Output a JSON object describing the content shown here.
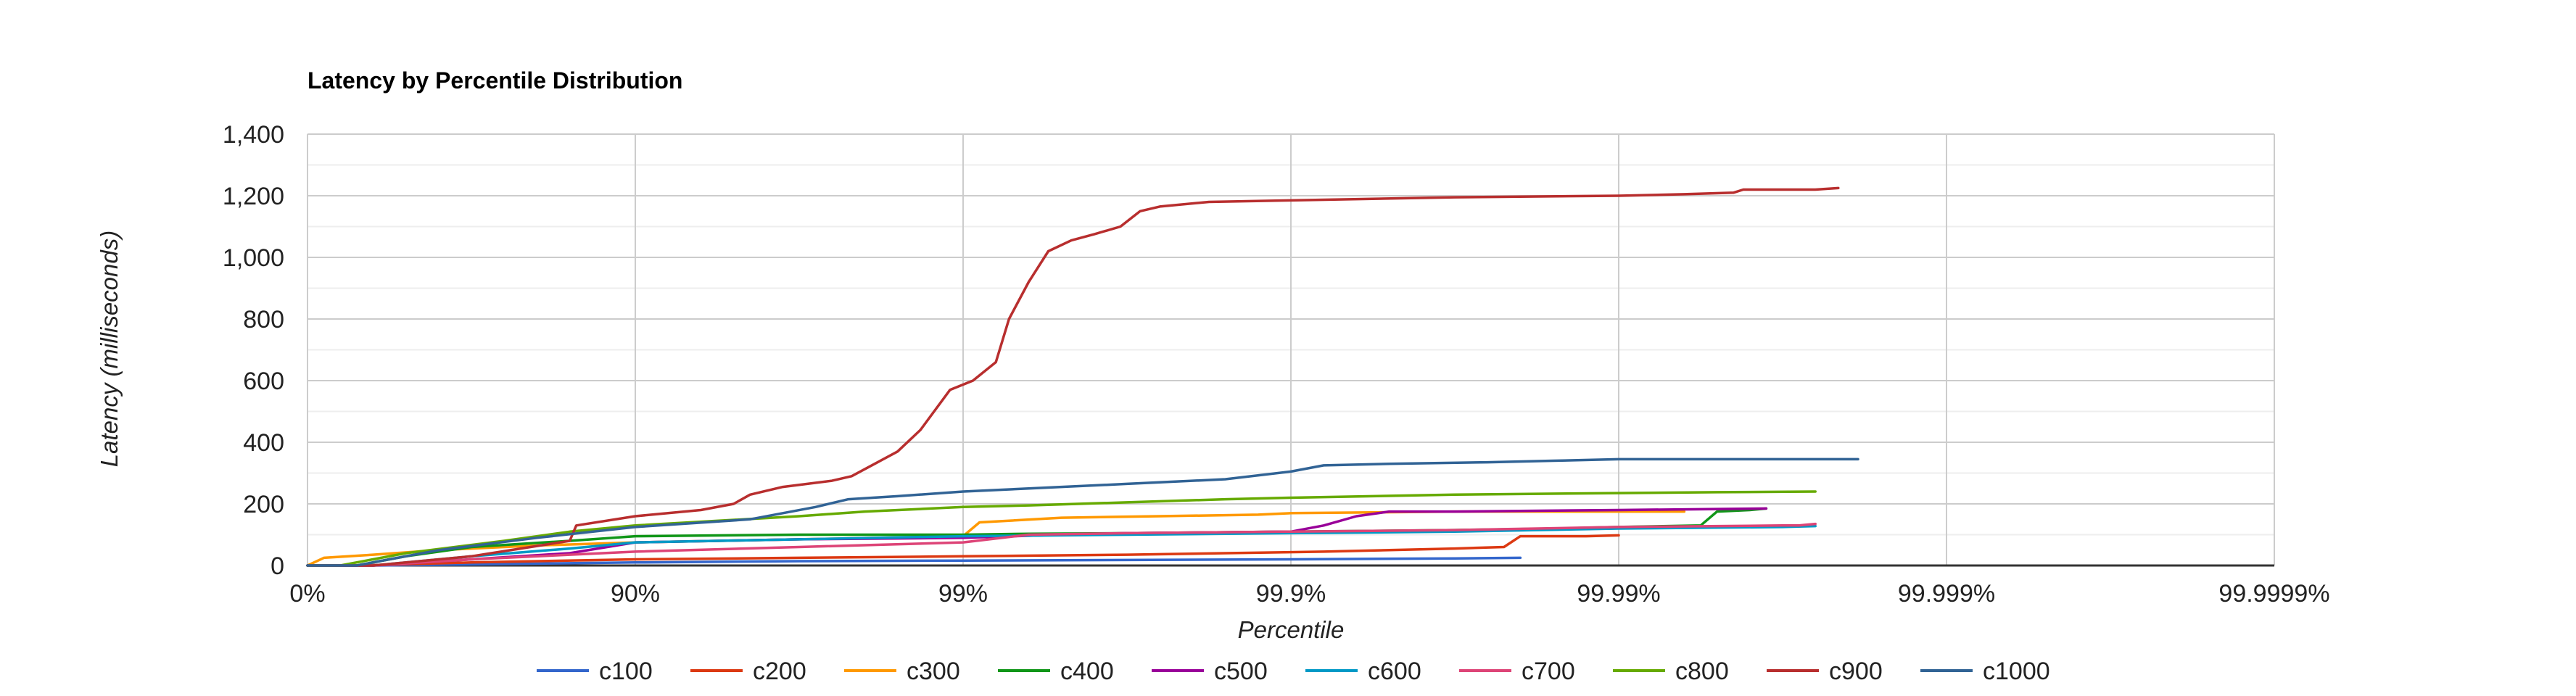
{
  "chart_data": {
    "type": "line",
    "title": "Latency by Percentile Distribution",
    "xlabel": "Percentile",
    "ylabel": "Latency (milliseconds)",
    "x_scale": "nines",
    "x_ticks": [
      "0%",
      "90%",
      "99%",
      "99.9%",
      "99.99%",
      "99.999%",
      "99.9999%"
    ],
    "xlim": [
      0,
      6
    ],
    "ylim": [
      0,
      1400
    ],
    "y_ticks": [
      "0",
      "200",
      "400",
      "600",
      "800",
      "1,000",
      "1,200",
      "1,400"
    ],
    "y_tick_values": [
      0,
      200,
      400,
      600,
      800,
      1000,
      1200,
      1400
    ],
    "grid": true,
    "legend_position": "bottom",
    "series": [
      {
        "name": "c100",
        "color": "#3366cc",
        "points": [
          [
            0,
            0
          ],
          [
            0.2,
            0
          ],
          [
            0.6,
            5
          ],
          [
            1.0,
            10
          ],
          [
            1.5,
            14
          ],
          [
            2.0,
            16
          ],
          [
            2.5,
            18
          ],
          [
            3.0,
            20
          ],
          [
            3.5,
            23
          ],
          [
            3.7,
            25
          ]
        ]
      },
      {
        "name": "c200",
        "color": "#dc3912",
        "points": [
          [
            0,
            0
          ],
          [
            0.15,
            0
          ],
          [
            0.5,
            10
          ],
          [
            1.0,
            20
          ],
          [
            1.5,
            25
          ],
          [
            2.0,
            30
          ],
          [
            2.5,
            35
          ],
          [
            2.8,
            40
          ],
          [
            3.1,
            45
          ],
          [
            3.3,
            50
          ],
          [
            3.5,
            55
          ],
          [
            3.65,
            60
          ],
          [
            3.7,
            95
          ],
          [
            3.9,
            95
          ],
          [
            4.0,
            98
          ]
        ]
      },
      {
        "name": "c300",
        "color": "#ff9900",
        "points": [
          [
            0,
            0
          ],
          [
            0.05,
            25
          ],
          [
            0.2,
            35
          ],
          [
            0.4,
            50
          ],
          [
            0.7,
            65
          ],
          [
            1.0,
            75
          ],
          [
            1.5,
            85
          ],
          [
            2.0,
            95
          ],
          [
            2.05,
            140
          ],
          [
            2.3,
            155
          ],
          [
            2.6,
            160
          ],
          [
            2.9,
            165
          ],
          [
            3.0,
            170
          ],
          [
            3.5,
            175
          ],
          [
            4.0,
            175
          ],
          [
            4.2,
            175
          ]
        ]
      },
      {
        "name": "c400",
        "color": "#109618",
        "points": [
          [
            0,
            0
          ],
          [
            0.15,
            0
          ],
          [
            0.3,
            30
          ],
          [
            0.5,
            60
          ],
          [
            0.8,
            80
          ],
          [
            1.0,
            95
          ],
          [
            1.5,
            100
          ],
          [
            2.0,
            100
          ],
          [
            2.2,
            103
          ],
          [
            2.5,
            105
          ],
          [
            3.0,
            110
          ],
          [
            3.5,
            115
          ],
          [
            3.8,
            120
          ],
          [
            4.0,
            125
          ],
          [
            4.25,
            130
          ],
          [
            4.3,
            175
          ],
          [
            4.4,
            180
          ],
          [
            4.45,
            185
          ]
        ]
      },
      {
        "name": "c500",
        "color": "#990099",
        "points": [
          [
            0,
            0
          ],
          [
            0.2,
            0
          ],
          [
            0.5,
            20
          ],
          [
            0.8,
            40
          ],
          [
            1.0,
            75
          ],
          [
            1.5,
            85
          ],
          [
            2.0,
            90
          ],
          [
            2.3,
            100
          ],
          [
            2.5,
            105
          ],
          [
            3.0,
            110
          ],
          [
            3.1,
            130
          ],
          [
            3.2,
            160
          ],
          [
            3.3,
            175
          ],
          [
            3.5,
            175
          ],
          [
            4.0,
            180
          ],
          [
            4.45,
            185
          ]
        ]
      },
      {
        "name": "c600",
        "color": "#0099c6",
        "points": [
          [
            0,
            0
          ],
          [
            0.2,
            0
          ],
          [
            0.5,
            30
          ],
          [
            0.8,
            55
          ],
          [
            1.0,
            75
          ],
          [
            1.5,
            85
          ],
          [
            2.0,
            95
          ],
          [
            2.5,
            100
          ],
          [
            3.0,
            105
          ],
          [
            3.5,
            110
          ],
          [
            4.0,
            120
          ],
          [
            4.5,
            125
          ],
          [
            4.6,
            128
          ]
        ]
      },
      {
        "name": "c700",
        "color": "#dd4477",
        "points": [
          [
            0,
            0
          ],
          [
            0.2,
            0
          ],
          [
            0.5,
            20
          ],
          [
            1.0,
            45
          ],
          [
            1.5,
            60
          ],
          [
            2.0,
            75
          ],
          [
            2.2,
            100
          ],
          [
            2.5,
            105
          ],
          [
            3.0,
            110
          ],
          [
            3.5,
            115
          ],
          [
            4.0,
            125
          ],
          [
            4.5,
            130
          ],
          [
            4.55,
            130
          ],
          [
            4.6,
            135
          ]
        ]
      },
      {
        "name": "c800",
        "color": "#66aa00",
        "points": [
          [
            0,
            0
          ],
          [
            0.1,
            0
          ],
          [
            0.3,
            40
          ],
          [
            0.6,
            80
          ],
          [
            0.8,
            110
          ],
          [
            1.0,
            130
          ],
          [
            1.5,
            160
          ],
          [
            1.7,
            175
          ],
          [
            2.0,
            190
          ],
          [
            2.2,
            195
          ],
          [
            2.5,
            205
          ],
          [
            2.8,
            215
          ],
          [
            3.0,
            220
          ],
          [
            3.5,
            230
          ],
          [
            4.0,
            235
          ],
          [
            4.3,
            238
          ],
          [
            4.6,
            240
          ]
        ]
      },
      {
        "name": "c900",
        "color": "#b82e2e",
        "points": [
          [
            0,
            0
          ],
          [
            0.2,
            0
          ],
          [
            0.5,
            30
          ],
          [
            0.8,
            80
          ],
          [
            0.82,
            130
          ],
          [
            1.0,
            160
          ],
          [
            1.2,
            180
          ],
          [
            1.3,
            200
          ],
          [
            1.35,
            230
          ],
          [
            1.45,
            255
          ],
          [
            1.6,
            275
          ],
          [
            1.66,
            290
          ],
          [
            1.73,
            330
          ],
          [
            1.8,
            370
          ],
          [
            1.87,
            440
          ],
          [
            1.96,
            570
          ],
          [
            2.03,
            600
          ],
          [
            2.1,
            660
          ],
          [
            2.14,
            800
          ],
          [
            2.2,
            920
          ],
          [
            2.26,
            1020
          ],
          [
            2.33,
            1055
          ],
          [
            2.4,
            1075
          ],
          [
            2.48,
            1100
          ],
          [
            2.54,
            1150
          ],
          [
            2.6,
            1165
          ],
          [
            2.75,
            1180
          ],
          [
            3.0,
            1185
          ],
          [
            3.5,
            1195
          ],
          [
            4.0,
            1200
          ],
          [
            4.2,
            1205
          ],
          [
            4.35,
            1210
          ],
          [
            4.38,
            1220
          ],
          [
            4.6,
            1220
          ],
          [
            4.67,
            1225
          ]
        ]
      },
      {
        "name": "c1000",
        "color": "#316395",
        "points": [
          [
            0,
            0
          ],
          [
            0.15,
            0
          ],
          [
            0.4,
            50
          ],
          [
            0.7,
            90
          ],
          [
            1.0,
            125
          ],
          [
            1.35,
            150
          ],
          [
            1.55,
            190
          ],
          [
            1.65,
            215
          ],
          [
            1.8,
            225
          ],
          [
            2.0,
            240
          ],
          [
            2.2,
            250
          ],
          [
            2.5,
            265
          ],
          [
            2.8,
            280
          ],
          [
            3.0,
            305
          ],
          [
            3.1,
            325
          ],
          [
            3.3,
            330
          ],
          [
            3.6,
            335
          ],
          [
            3.8,
            340
          ],
          [
            4.0,
            345
          ],
          [
            4.5,
            345
          ],
          [
            4.73,
            345
          ]
        ]
      }
    ]
  }
}
